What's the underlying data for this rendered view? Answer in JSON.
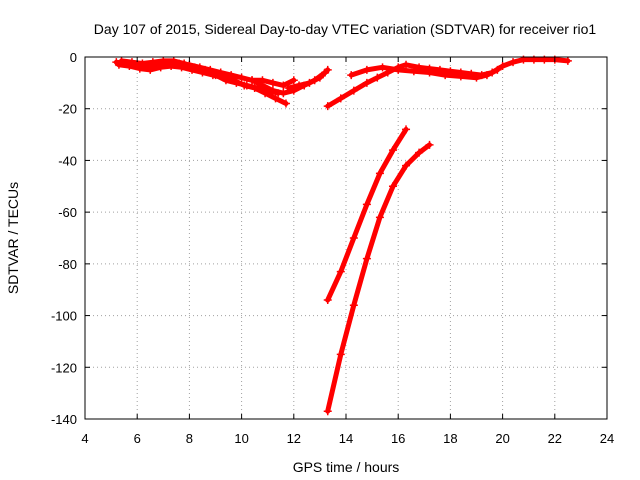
{
  "chart_data": {
    "type": "scatter",
    "title": "Day 107 of 2015, Sidereal Day-to-day VTEC variation (SDTVAR) for receiver rio1",
    "xlabel": "GPS time / hours",
    "ylabel": "SDTVAR / TECUs",
    "xlim": [
      4,
      24
    ],
    "ylim": [
      -140,
      0
    ],
    "xticks": [
      4,
      6,
      8,
      10,
      12,
      14,
      16,
      18,
      20,
      22,
      24
    ],
    "yticks": [
      -140,
      -120,
      -100,
      -80,
      -60,
      -40,
      -20,
      0
    ],
    "grid": true,
    "series_color": "#ff0000",
    "series": [
      {
        "x": [
          5.2,
          5.6,
          6.0,
          6.4,
          6.8,
          7.2,
          7.6,
          8.0,
          8.4,
          8.8,
          9.2,
          9.6,
          10.0,
          10.4,
          10.8,
          11.2,
          11.6,
          12.0
        ],
        "y": [
          -2,
          -2.5,
          -3,
          -3.5,
          -3,
          -2.5,
          -2.5,
          -3,
          -4,
          -5,
          -6,
          -7,
          -8,
          -9,
          -9,
          -10,
          -11,
          -9
        ]
      },
      {
        "x": [
          5.3,
          5.7,
          6.1,
          6.5,
          6.9,
          7.3,
          7.7,
          8.1,
          8.5,
          8.9,
          9.3,
          9.7,
          10.1,
          10.5,
          10.9,
          11.3,
          11.7
        ],
        "y": [
          -3,
          -3.5,
          -4.5,
          -5,
          -4,
          -3.5,
          -4,
          -5,
          -6,
          -7,
          -8,
          -9,
          -11,
          -12,
          -14,
          -16,
          -18
        ]
      },
      {
        "x": [
          5.4,
          5.8,
          6.2,
          6.6,
          7.0,
          7.4,
          7.8,
          8.2,
          8.6,
          9.0,
          9.4,
          9.8,
          10.2,
          10.6,
          11.0,
          11.4
        ],
        "y": [
          -1.5,
          -2,
          -2.5,
          -2,
          -1.5,
          -1.5,
          -2.5,
          -4,
          -5,
          -7,
          -9,
          -10,
          -11,
          -12,
          -13,
          -14
        ]
      },
      {
        "x": [
          10.4,
          10.8,
          11.2,
          11.6,
          12.0,
          12.4,
          12.8,
          13.2
        ],
        "y": [
          -9,
          -11,
          -13,
          -14,
          -13,
          -11,
          -9,
          -6
        ]
      },
      {
        "x": [
          11.8,
          12.2,
          12.6,
          13.0,
          13.3
        ],
        "y": [
          -12,
          -11,
          -10,
          -8,
          -5
        ]
      },
      {
        "x": [
          13.3,
          13.8,
          14.3,
          14.8,
          15.2,
          15.6,
          16.0,
          16.3,
          16.8,
          17.2,
          17.6,
          18.0,
          18.4,
          18.8,
          19.2,
          19.6,
          20.0,
          20.4,
          20.8,
          21.2,
          21.6,
          22.0,
          22.5
        ],
        "y": [
          -19,
          -16,
          -13,
          -10,
          -8,
          -6,
          -4,
          -3,
          -4,
          -4.5,
          -5,
          -5.5,
          -6,
          -6.5,
          -7,
          -6,
          -3.5,
          -2,
          -1,
          -1,
          -1,
          -1,
          -1.5
        ]
      },
      {
        "x": [
          14.2,
          14.8,
          15.4,
          16.0,
          16.6,
          17.2,
          17.8,
          18.4,
          19.0,
          19.4,
          19.8
        ],
        "y": [
          -7,
          -5,
          -4,
          -5,
          -5.5,
          -6,
          -7,
          -7.5,
          -8,
          -7,
          -5
        ]
      },
      {
        "x": [
          13.3,
          13.8,
          14.3,
          14.8,
          15.3,
          15.8,
          16.3
        ],
        "y": [
          -94,
          -83,
          -70,
          -57,
          -45,
          -36,
          -28
        ]
      },
      {
        "x": [
          13.3,
          13.8,
          14.3,
          14.8,
          15.3,
          15.8,
          16.3,
          16.8,
          17.2
        ],
        "y": [
          -137,
          -115,
          -96,
          -78,
          -62,
          -50,
          -42,
          -37,
          -34
        ]
      }
    ]
  }
}
